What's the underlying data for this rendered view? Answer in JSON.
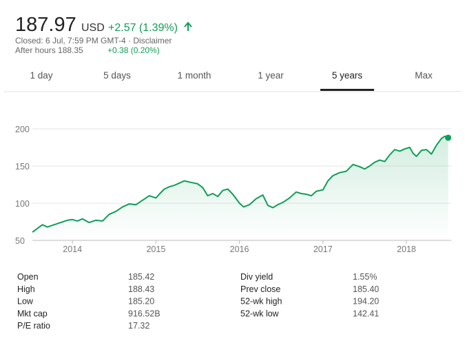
{
  "header": {
    "price": "187.97",
    "currency": "USD",
    "change": "+2.57 (1.39%)",
    "closed": "Closed: 6 Jul, 7:59 PM GMT-4 · Disclaimer",
    "after_hours": "After hours 188.35",
    "after_hours_change": "+0.38 (0.20%)"
  },
  "tabs": {
    "labels": [
      "1 day",
      "5 days",
      "1 month",
      "1 year",
      "5 years",
      "Max"
    ],
    "active": 4
  },
  "chart_data": {
    "type": "area",
    "color": "#0f9d58",
    "grid": true,
    "x": [
      2013.52,
      2013.58,
      2013.64,
      2013.7,
      2013.78,
      2013.86,
      2013.94,
      2014.0,
      2014.06,
      2014.12,
      2014.2,
      2014.28,
      2014.36,
      2014.44,
      2014.52,
      2014.6,
      2014.68,
      2014.76,
      2014.84,
      2014.92,
      2015.0,
      2015.04,
      2015.1,
      2015.16,
      2015.22,
      2015.28,
      2015.34,
      2015.42,
      2015.5,
      2015.56,
      2015.62,
      2015.68,
      2015.74,
      2015.8,
      2015.86,
      2015.92,
      2016.0,
      2016.05,
      2016.12,
      2016.2,
      2016.28,
      2016.34,
      2016.4,
      2016.46,
      2016.52,
      2016.6,
      2016.68,
      2016.74,
      2016.8,
      2016.86,
      2016.92,
      2017.0,
      2017.06,
      2017.12,
      2017.2,
      2017.28,
      2017.36,
      2017.44,
      2017.5,
      2017.56,
      2017.62,
      2017.68,
      2017.74,
      2017.8,
      2017.86,
      2017.92,
      2017.98,
      2018.04,
      2018.08,
      2018.12,
      2018.18,
      2018.24,
      2018.3,
      2018.36,
      2018.42,
      2018.46,
      2018.5
    ],
    "values": [
      61,
      66,
      71,
      68,
      71,
      74,
      77,
      78,
      76,
      79,
      74,
      77,
      76,
      85,
      89,
      95,
      99,
      98,
      104,
      110,
      107,
      112,
      119,
      122,
      124,
      127,
      130,
      128,
      126,
      121,
      110,
      113,
      109,
      117,
      119,
      112,
      100,
      95,
      98,
      106,
      111,
      97,
      94,
      98,
      101,
      107,
      115,
      113,
      112,
      110,
      116,
      118,
      130,
      137,
      141,
      143,
      152,
      149,
      146,
      150,
      155,
      158,
      156,
      165,
      172,
      170,
      173,
      175,
      167,
      163,
      171,
      172,
      166,
      178,
      187,
      190,
      188
    ],
    "xlim": [
      2013.52,
      2018.52
    ],
    "xticks": [
      2014,
      2015,
      2016,
      2017,
      2018
    ],
    "ylim": [
      50,
      200
    ],
    "yticks": [
      50,
      100,
      150,
      200
    ]
  },
  "stats": {
    "left": [
      [
        "Open",
        "185.42"
      ],
      [
        "High",
        "188.43"
      ],
      [
        "Low",
        "185.20"
      ],
      [
        "Mkt cap",
        "916.52B"
      ],
      [
        "P/E ratio",
        "17.32"
      ]
    ],
    "right": [
      [
        "Div yield",
        "1.55%"
      ],
      [
        "Prev close",
        "185.40"
      ],
      [
        "52-wk high",
        "194.20"
      ],
      [
        "52-wk low",
        "142.41"
      ]
    ]
  }
}
